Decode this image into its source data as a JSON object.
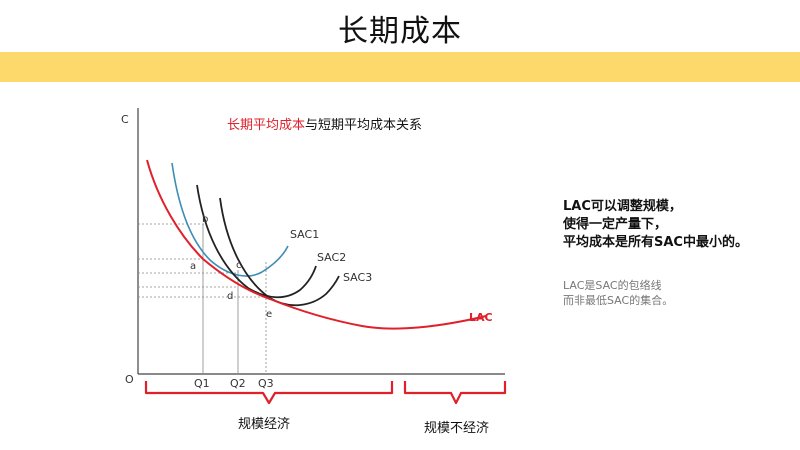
{
  "slide": {
    "title": "长期成本"
  },
  "colors": {
    "band": "#FCD96A",
    "lac": "#E0202A",
    "sac1": "#3E8DB5",
    "sac_dark": "#222222",
    "axis": "#444444",
    "guide": "#888888",
    "brace": "#E0202A"
  },
  "diagram": {
    "heading_red": "长期平均成本",
    "heading_black": "与短期平均成本关系",
    "axis_y_label": "C",
    "origin_label": "O",
    "curves": {
      "sac1": "SAC1",
      "sac2": "SAC2",
      "sac3": "SAC3",
      "lac": "LAC"
    },
    "points": {
      "a": "a",
      "b": "b",
      "c": "c",
      "d": "d",
      "e": "e"
    },
    "quantities": [
      "Q1",
      "Q2",
      "Q3"
    ],
    "ranges": {
      "economies": "规模经济",
      "diseconomies": "规模不经济"
    }
  },
  "notes": {
    "main": [
      "LAC可以调整规模，",
      "使得一定产量下，",
      "平均成本是所有SAC中最小的。"
    ],
    "sub": [
      "LAC是SAC的包络线",
      "而非最低SAC的集合。"
    ]
  }
}
